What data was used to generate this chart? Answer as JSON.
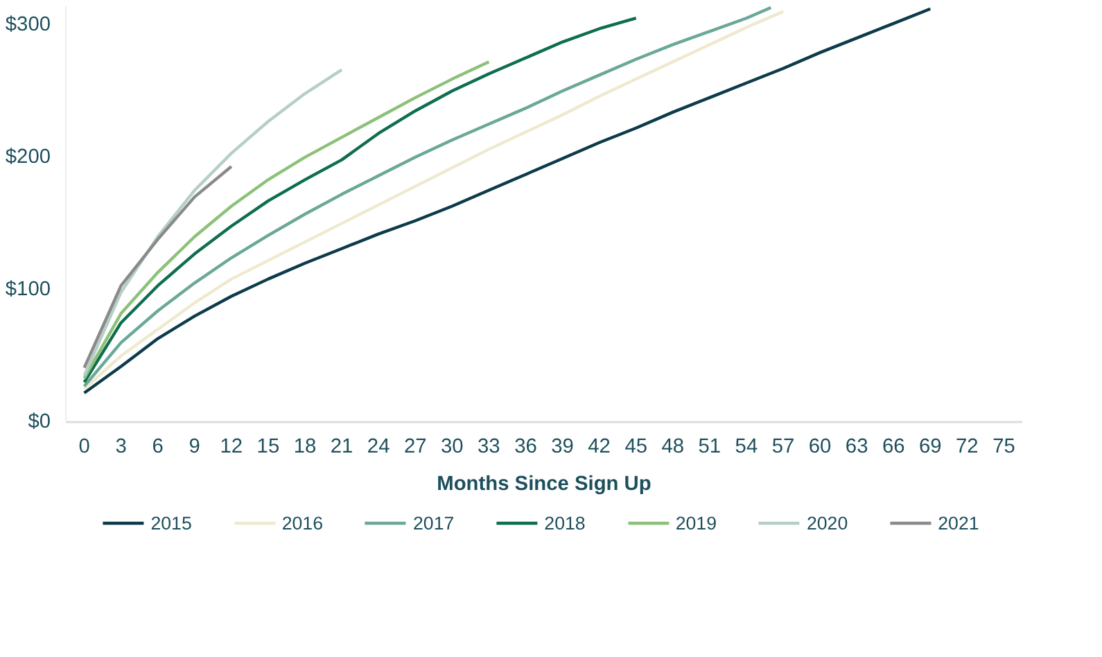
{
  "chart_data": {
    "type": "line",
    "xlabel": "Months Since Sign Up",
    "legend": "bottom",
    "xlim": [
      -1.5,
      76.5
    ],
    "ylim": [
      0,
      314
    ],
    "xticks": [
      0,
      3,
      6,
      9,
      12,
      15,
      18,
      21,
      24,
      27,
      30,
      33,
      36,
      39,
      42,
      45,
      48,
      51,
      54,
      57,
      60,
      63,
      66,
      69,
      72,
      75
    ],
    "yticks": [
      {
        "value": 0,
        "label": "$0"
      },
      {
        "value": 100,
        "label": "$100"
      },
      {
        "value": 200,
        "label": "$200"
      },
      {
        "value": 300,
        "label": "$300"
      }
    ],
    "series": [
      {
        "name": "2015",
        "color": "#0d3b4a",
        "x": [
          0,
          3,
          6,
          9,
          12,
          15,
          18,
          21,
          24,
          27,
          30,
          33,
          36,
          39,
          42,
          45,
          48,
          51,
          54,
          57,
          60,
          63,
          66,
          69
        ],
        "values": [
          22,
          42,
          63,
          80,
          95,
          108,
          120,
          131,
          142,
          152,
          163,
          175,
          187,
          199,
          211,
          222,
          234,
          245,
          256,
          267,
          279,
          290,
          301,
          312
        ]
      },
      {
        "name": "2016",
        "color": "#efe9cf",
        "x": [
          0,
          3,
          6,
          9,
          12,
          15,
          18,
          21,
          24,
          27,
          30,
          33,
          36,
          39,
          42,
          45,
          48,
          51,
          54,
          57
        ],
        "values": [
          25,
          50,
          70,
          90,
          108,
          122,
          136,
          150,
          164,
          178,
          192,
          206,
          219,
          232,
          246,
          259,
          272,
          285,
          298,
          310
        ]
      },
      {
        "name": "2017",
        "color": "#6aa898",
        "x": [
          0,
          3,
          6,
          9,
          12,
          15,
          18,
          21,
          24,
          27,
          30,
          33,
          36,
          39,
          42,
          45,
          48,
          51,
          54,
          56
        ],
        "values": [
          27,
          60,
          84,
          105,
          124,
          141,
          157,
          172,
          186,
          200,
          213,
          225,
          237,
          250,
          262,
          274,
          285,
          295,
          305,
          313
        ]
      },
      {
        "name": "2018",
        "color": "#0e6e4f",
        "x": [
          0,
          3,
          6,
          9,
          12,
          15,
          18,
          21,
          24,
          27,
          30,
          33,
          36,
          39,
          42,
          45
        ],
        "values": [
          30,
          75,
          103,
          127,
          148,
          167,
          183,
          198,
          218,
          235,
          250,
          263,
          275,
          287,
          297,
          305
        ]
      },
      {
        "name": "2019",
        "color": "#8cc17a",
        "x": [
          0,
          3,
          6,
          9,
          12,
          15,
          18,
          21,
          24,
          27,
          30,
          33
        ],
        "values": [
          33,
          82,
          113,
          140,
          163,
          183,
          200,
          215,
          230,
          245,
          259,
          272
        ]
      },
      {
        "name": "2020",
        "color": "#b5cfc8",
        "x": [
          0,
          3,
          6,
          9,
          12,
          15,
          18,
          21
        ],
        "values": [
          35,
          98,
          140,
          175,
          203,
          227,
          248,
          266
        ]
      },
      {
        "name": "2021",
        "color": "#8a8a8a",
        "x": [
          0,
          3,
          6,
          9,
          12
        ],
        "values": [
          41,
          103,
          138,
          170,
          193
        ]
      }
    ]
  }
}
